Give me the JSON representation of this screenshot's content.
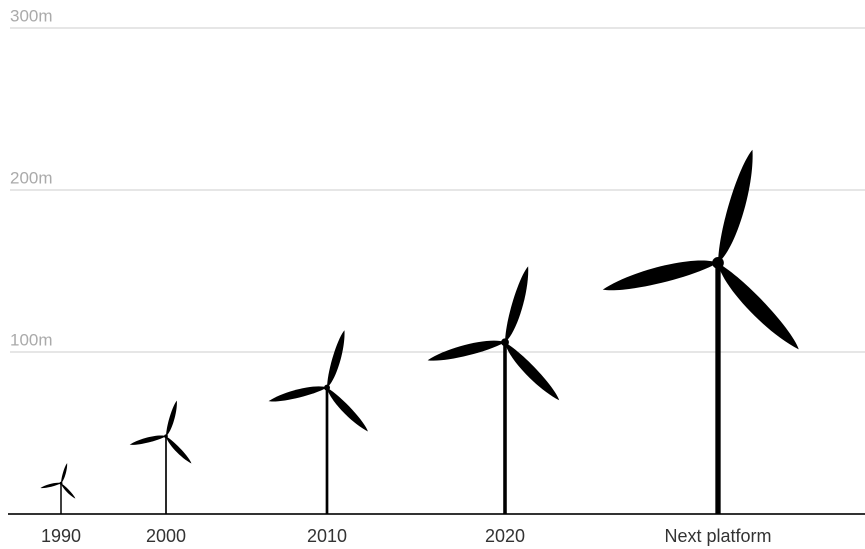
{
  "chart_data": {
    "type": "turbine",
    "categories": [
      "1990",
      "2000",
      "2010",
      "2020",
      "Next platform"
    ],
    "series": [
      {
        "values": [
          19,
          48,
          78,
          106,
          155
        ],
        "color": "#000000"
      },
      {
        "values": [
          13,
          23,
          37,
          49,
          73
        ],
        "color": "#000000"
      }
    ],
    "ylim": [
      0,
      300
    ],
    "yticks": [
      {
        "value": 100,
        "label": "100m"
      },
      {
        "value": 200,
        "label": "200m"
      },
      {
        "value": 300,
        "label": "300m"
      }
    ],
    "grid": true
  }
}
